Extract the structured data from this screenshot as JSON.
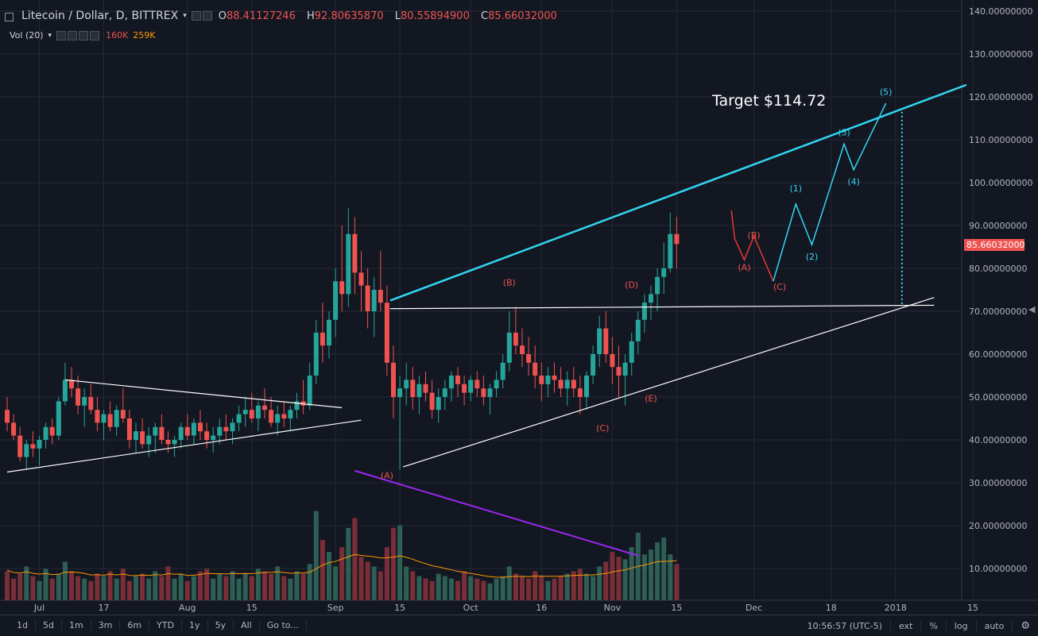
{
  "header": {
    "symbol": "Litecoin / Dollar, D, BITTREX",
    "open": "88.41127246",
    "high": "92.80635870",
    "low": "80.55894900",
    "close": "85.66032000",
    "open_prefix": "O",
    "high_prefix": "H",
    "low_prefix": "L",
    "close_prefix": "C"
  },
  "volume_legend": {
    "label": "Vol (20)",
    "value1": "160K",
    "value2": "259K"
  },
  "price_axis": {
    "ticks": [
      "140.00000000",
      "130.00000000",
      "120.00000000",
      "110.00000000",
      "100.00000000",
      "90.00000000",
      "80.00000000",
      "70.00000000",
      "60.00000000",
      "50.00000000",
      "40.00000000",
      "30.00000000",
      "20.00000000",
      "10.00000000"
    ],
    "last_price_label": "85.66032000"
  },
  "time_axis": {
    "ticks": [
      "Jul",
      "17",
      "Aug",
      "15",
      "Sep",
      "15",
      "Oct",
      "16",
      "Nov",
      "15",
      "Dec",
      "18",
      "2018",
      "15"
    ]
  },
  "annotations": {
    "target": "Target $114.72",
    "wave_labels_red": [
      "(A)",
      "(B)",
      "(C)",
      "(D)",
      "(E)",
      "(A)",
      "(B)",
      "(C)"
    ],
    "wave_labels_cyan": [
      "(1)",
      "(2)",
      "(3)",
      "(4)",
      "(5)"
    ]
  },
  "bottom_bar": {
    "timeframes": [
      "1d",
      "5d",
      "1m",
      "3m",
      "6m",
      "YTD",
      "1y",
      "5y",
      "All",
      "Go to..."
    ],
    "clock": "10:56:57 (UTC-5)",
    "options": [
      "ext",
      "%",
      "log",
      "auto"
    ]
  },
  "colors": {
    "up": "#26a69a",
    "down": "#ef5350",
    "cyan": "#33d6f2",
    "purple": "#9c27f0",
    "bg": "#131722",
    "grid": "#252936"
  },
  "chart_data": {
    "type": "candlestick",
    "title": "Litecoin / Dollar, D, BITTREX",
    "ylim": [
      2,
      142
    ],
    "y_ticks": [
      10,
      20,
      30,
      40,
      50,
      60,
      70,
      80,
      90,
      100,
      110,
      120,
      130,
      140
    ],
    "last_close": 85.66,
    "candles_ohlc": [
      [
        47,
        50,
        42,
        44
      ],
      [
        44,
        46,
        40,
        41
      ],
      [
        41,
        43,
        35,
        36
      ],
      [
        36,
        40,
        33,
        39
      ],
      [
        39,
        42,
        36,
        38
      ],
      [
        38,
        41,
        34,
        40
      ],
      [
        40,
        44,
        38,
        43
      ],
      [
        43,
        45,
        39,
        41
      ],
      [
        41,
        50,
        40,
        49
      ],
      [
        49,
        58,
        48,
        54
      ],
      [
        54,
        57,
        50,
        52
      ],
      [
        52,
        55,
        46,
        48
      ],
      [
        48,
        52,
        43,
        50
      ],
      [
        50,
        53,
        46,
        47
      ],
      [
        47,
        50,
        42,
        44
      ],
      [
        44,
        47,
        40,
        46
      ],
      [
        46,
        49,
        42,
        43
      ],
      [
        43,
        48,
        41,
        47
      ],
      [
        47,
        52,
        44,
        45
      ],
      [
        45,
        47,
        38,
        40
      ],
      [
        40,
        44,
        37,
        42
      ],
      [
        42,
        45,
        38,
        39
      ],
      [
        39,
        43,
        36,
        41
      ],
      [
        41,
        44,
        37,
        43
      ],
      [
        43,
        46,
        39,
        40
      ],
      [
        40,
        42,
        37,
        39
      ],
      [
        39,
        41,
        36,
        40
      ],
      [
        40,
        44,
        38,
        43
      ],
      [
        43,
        46,
        40,
        41
      ],
      [
        41,
        45,
        39,
        44
      ],
      [
        44,
        47,
        40,
        42
      ],
      [
        42,
        44,
        38,
        40
      ],
      [
        40,
        43,
        37,
        41
      ],
      [
        41,
        45,
        39,
        43
      ],
      [
        43,
        46,
        40,
        42
      ],
      [
        42,
        45,
        39,
        44
      ],
      [
        44,
        48,
        42,
        46
      ],
      [
        46,
        50,
        43,
        47
      ],
      [
        47,
        51,
        44,
        45
      ],
      [
        45,
        49,
        42,
        48
      ],
      [
        48,
        52,
        45,
        47
      ],
      [
        47,
        50,
        43,
        44
      ],
      [
        44,
        48,
        41,
        46
      ],
      [
        46,
        49,
        43,
        45
      ],
      [
        45,
        48,
        42,
        47
      ],
      [
        47,
        51,
        45,
        49
      ],
      [
        49,
        54,
        46,
        48
      ],
      [
        48,
        58,
        47,
        55
      ],
      [
        55,
        68,
        53,
        65
      ],
      [
        65,
        72,
        58,
        62
      ],
      [
        62,
        70,
        59,
        68
      ],
      [
        68,
        80,
        64,
        77
      ],
      [
        77,
        90,
        70,
        74
      ],
      [
        74,
        94,
        71,
        88
      ],
      [
        88,
        92,
        74,
        79
      ],
      [
        79,
        84,
        70,
        76
      ],
      [
        76,
        80,
        66,
        70
      ],
      [
        70,
        78,
        64,
        75
      ],
      [
        75,
        84,
        70,
        72
      ],
      [
        72,
        76,
        55,
        58
      ],
      [
        58,
        62,
        45,
        50
      ],
      [
        50,
        55,
        33,
        52
      ],
      [
        52,
        58,
        48,
        54
      ],
      [
        54,
        57,
        47,
        50
      ],
      [
        50,
        55,
        46,
        53
      ],
      [
        53,
        56,
        49,
        51
      ],
      [
        51,
        54,
        45,
        47
      ],
      [
        47,
        52,
        44,
        50
      ],
      [
        50,
        54,
        47,
        52
      ],
      [
        52,
        56,
        49,
        55
      ],
      [
        55,
        57,
        50,
        53
      ],
      [
        53,
        55,
        48,
        51
      ],
      [
        51,
        55,
        49,
        54
      ],
      [
        54,
        56,
        50,
        52
      ],
      [
        52,
        55,
        48,
        50
      ],
      [
        50,
        53,
        46,
        52
      ],
      [
        52,
        56,
        50,
        54
      ],
      [
        54,
        60,
        52,
        58
      ],
      [
        58,
        70,
        56,
        65
      ],
      [
        65,
        71,
        60,
        62
      ],
      [
        62,
        66,
        57,
        60
      ],
      [
        60,
        64,
        55,
        58
      ],
      [
        58,
        62,
        52,
        55
      ],
      [
        55,
        58,
        49,
        53
      ],
      [
        53,
        57,
        50,
        55
      ],
      [
        55,
        58,
        51,
        54
      ],
      [
        54,
        57,
        50,
        52
      ],
      [
        52,
        56,
        48,
        54
      ],
      [
        54,
        57,
        50,
        52
      ],
      [
        52,
        55,
        46,
        50
      ],
      [
        50,
        56,
        47,
        55
      ],
      [
        55,
        62,
        53,
        60
      ],
      [
        60,
        69,
        57,
        66
      ],
      [
        66,
        70,
        58,
        60
      ],
      [
        60,
        64,
        53,
        57
      ],
      [
        57,
        62,
        50,
        55
      ],
      [
        55,
        60,
        48,
        58
      ],
      [
        58,
        65,
        55,
        63
      ],
      [
        63,
        70,
        60,
        68
      ],
      [
        68,
        74,
        65,
        72
      ],
      [
        72,
        76,
        68,
        74
      ],
      [
        74,
        80,
        70,
        78
      ],
      [
        78,
        86,
        74,
        80
      ],
      [
        80,
        93,
        79,
        88
      ],
      [
        88,
        92,
        80,
        85.66
      ]
    ],
    "volume": [
      12,
      9,
      11,
      14,
      10,
      8,
      13,
      9,
      11,
      16,
      12,
      10,
      9,
      8,
      11,
      10,
      12,
      9,
      13,
      8,
      10,
      11,
      9,
      12,
      10,
      14,
      9,
      11,
      8,
      10,
      12,
      13,
      9,
      11,
      10,
      12,
      9,
      11,
      10,
      13,
      12,
      11,
      14,
      10,
      9,
      12,
      11,
      15,
      37,
      25,
      20,
      14,
      22,
      30,
      34,
      18,
      16,
      14,
      12,
      22,
      30,
      31,
      14,
      12,
      10,
      9,
      8,
      11,
      10,
      9,
      8,
      12,
      10,
      9,
      8,
      7,
      9,
      10,
      14,
      11,
      10,
      9,
      12,
      10,
      8,
      9,
      10,
      11,
      12,
      13,
      11,
      10,
      14,
      16,
      20,
      18,
      17,
      22,
      28,
      19,
      21,
      24,
      26,
      19,
      15
    ],
    "volume_ma": [
      12.5,
      11.5,
      11.3,
      11.8,
      11.2,
      10.8,
      11.1,
      10.6,
      10.8,
      11.6,
      11.7,
      11.5,
      11.1,
      10.5,
      10.6,
      10.4,
      10.8,
      10.5,
      10.9,
      10.3,
      10.2,
      10.5,
      10.3,
      10.6,
      10.5,
      11.0,
      10.8,
      10.9,
      10.3,
      10.4,
      10.7,
      11.2,
      11.0,
      11.0,
      10.9,
      11.1,
      11.0,
      11.1,
      11.0,
      11.3,
      11.5,
      11.6,
      11.8,
      11.5,
      11.2,
      11.3,
      11.3,
      11.6,
      13.0,
      14.6,
      15.6,
      16.1,
      17.1,
      18.0,
      19.0,
      18.6,
      18.3,
      18.0,
      17.5,
      17.6,
      17.9,
      18.4,
      17.8,
      17.0,
      16.0,
      15.2,
      14.3,
      13.8,
      13.2,
      12.6,
      12.0,
      11.6,
      11.1,
      10.7,
      10.2,
      9.8,
      9.6,
      9.5,
      9.8,
      9.9,
      9.9,
      9.8,
      10.0,
      10.0,
      9.9,
      9.9,
      10.0,
      10.1,
      10.3,
      10.4,
      10.5,
      10.5,
      10.8,
      11.1,
      11.7,
      12.2,
      12.6,
      13.3,
      14.1,
      14.6,
      15.3,
      16.0,
      16.1,
      16.2,
      16.4
    ],
    "trendlines": [
      {
        "name": "upper-channel",
        "color": "#33d6f2",
        "points": [
          [
            59.5,
            72.5
          ],
          [
            149,
            122.8
          ]
        ]
      },
      {
        "name": "neckline",
        "color": "#ffffff",
        "points": [
          [
            59.5,
            70.6
          ],
          [
            144,
            71.4
          ]
        ]
      },
      {
        "name": "lower-support",
        "color": "#ffffff",
        "points": [
          [
            61.5,
            33.7
          ],
          [
            144,
            73.2
          ]
        ]
      },
      {
        "name": "jul-triangle-top",
        "color": "#ffffff",
        "points": [
          [
            9,
            54
          ],
          [
            52,
            47.5
          ]
        ]
      },
      {
        "name": "jul-triangle-bottom",
        "color": "#ffffff",
        "points": [
          [
            0,
            32.5
          ],
          [
            55,
            44.6
          ]
        ]
      },
      {
        "name": "volume-downtrend",
        "color": "#9c27f0",
        "points": [
          [
            54,
            32.8
          ],
          [
            98,
            13
          ]
        ]
      },
      {
        "name": "target-dotted",
        "color": "#33d6f2",
        "dashed": true,
        "points": [
          [
            139,
            116.5
          ],
          [
            139,
            71.4
          ]
        ]
      }
    ],
    "projection_red": [
      [
        112.5,
        93.5
      ],
      [
        113,
        87
      ],
      [
        114.5,
        82
      ],
      [
        116,
        87.5
      ],
      [
        119,
        77
      ]
    ],
    "projection_cyan": [
      [
        119,
        77
      ],
      [
        122.5,
        95
      ],
      [
        125,
        85.5
      ],
      [
        130,
        109
      ],
      [
        131.5,
        103
      ],
      [
        136.5,
        118.5
      ]
    ],
    "x_tick_index": [
      5,
      15,
      28,
      38,
      51,
      61,
      72,
      83,
      94,
      104,
      116,
      128,
      138,
      150
    ]
  }
}
